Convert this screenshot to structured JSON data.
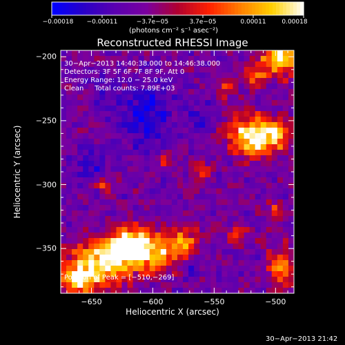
{
  "chart_data": {
    "type": "heatmap",
    "title": "Reconstructed RHESSI Image",
    "xlabel": "Heliocentric X (arcsec)",
    "ylabel": "Heliocentric Y (arcsec)",
    "xlim": [
      -675,
      -485
    ],
    "ylim": [
      -385,
      -195
    ],
    "xticks": [
      -650,
      -600,
      -550,
      -500
    ],
    "xtick_labels": [
      "−650",
      "−600",
      "−550",
      "−500"
    ],
    "yticks": [
      -200,
      -250,
      -300,
      -350
    ],
    "ytick_labels": [
      "−200",
      "−250",
      "−300",
      "−350"
    ],
    "colorbar": {
      "range": [
        -0.00018,
        0.00018
      ],
      "ticks": [
        "−0.00018",
        "−0.00011",
        "−3.7e−05",
        "3.7e−05",
        "0.00011",
        "0.00018"
      ],
      "units": "(photons cm⁻² s⁻¹ asec⁻²)",
      "colors": [
        "#0000ff",
        "#2800c8",
        "#5a00b0",
        "#7a00a0",
        "#b00030",
        "#ff2000",
        "#ff8000",
        "#ffd000",
        "#ffffff"
      ]
    },
    "annotations": [
      "30−Apr−2013 14:40:38.000 to 14:46:38.000",
      "Detectors: 3F 5F 6F 7F 8F 9F, Att 0",
      "Energy Range: 12.0 − 25.0 keV",
      "Clean     Total counts: 7.89E+03"
    ],
    "peak_label": "Position of Peak = [−510,−269]",
    "peak": [
      -510,
      -269
    ],
    "sources": [
      {
        "x": -640,
        "y": -360,
        "sx": 18,
        "sy": 12,
        "amp": 1.0
      },
      {
        "x": -620,
        "y": -345,
        "sx": 10,
        "sy": 8,
        "amp": 0.9
      },
      {
        "x": -600,
        "y": -352,
        "sx": 14,
        "sy": 10,
        "amp": 0.8
      },
      {
        "x": -575,
        "y": -345,
        "sx": 8,
        "sy": 10,
        "amp": 0.55
      },
      {
        "x": -660,
        "y": -375,
        "sx": 10,
        "sy": 8,
        "amp": 0.8
      },
      {
        "x": -520,
        "y": -262,
        "sx": 12,
        "sy": 10,
        "amp": 1.0
      },
      {
        "x": -500,
        "y": -262,
        "sx": 8,
        "sy": 8,
        "amp": 0.7
      },
      {
        "x": -495,
        "y": -200,
        "sx": 12,
        "sy": 10,
        "amp": 0.85
      },
      {
        "x": -515,
        "y": -215,
        "sx": 6,
        "sy": 6,
        "amp": 0.5
      },
      {
        "x": -540,
        "y": -225,
        "sx": 5,
        "sy": 5,
        "amp": 0.45
      },
      {
        "x": -495,
        "y": -365,
        "sx": 8,
        "sy": 10,
        "amp": 0.6
      },
      {
        "x": -530,
        "y": -340,
        "sx": 5,
        "sy": 5,
        "amp": 0.5
      },
      {
        "x": -560,
        "y": -290,
        "sx": 5,
        "sy": 5,
        "amp": 0.4
      },
      {
        "x": -640,
        "y": -300,
        "sx": 5,
        "sy": 4,
        "amp": 0.45
      },
      {
        "x": -590,
        "y": -280,
        "sx": 4,
        "sy": 4,
        "amp": 0.35
      },
      {
        "x": -500,
        "y": -320,
        "sx": 5,
        "sy": 5,
        "amp": 0.45
      }
    ],
    "negative_regions": [
      {
        "x": -605,
        "y": -245,
        "sx": 14,
        "sy": 18,
        "amp": 0.9
      },
      {
        "x": -650,
        "y": -285,
        "sx": 10,
        "sy": 10,
        "amp": 0.6
      },
      {
        "x": -560,
        "y": -250,
        "sx": 8,
        "sy": 10,
        "amp": 0.5
      },
      {
        "x": -570,
        "y": -365,
        "sx": 6,
        "sy": 6,
        "amp": 0.5
      },
      {
        "x": -640,
        "y": -225,
        "sx": 8,
        "sy": 8,
        "amp": 0.45
      }
    ]
  },
  "timestamp": "30−Apr−2013 21:42"
}
